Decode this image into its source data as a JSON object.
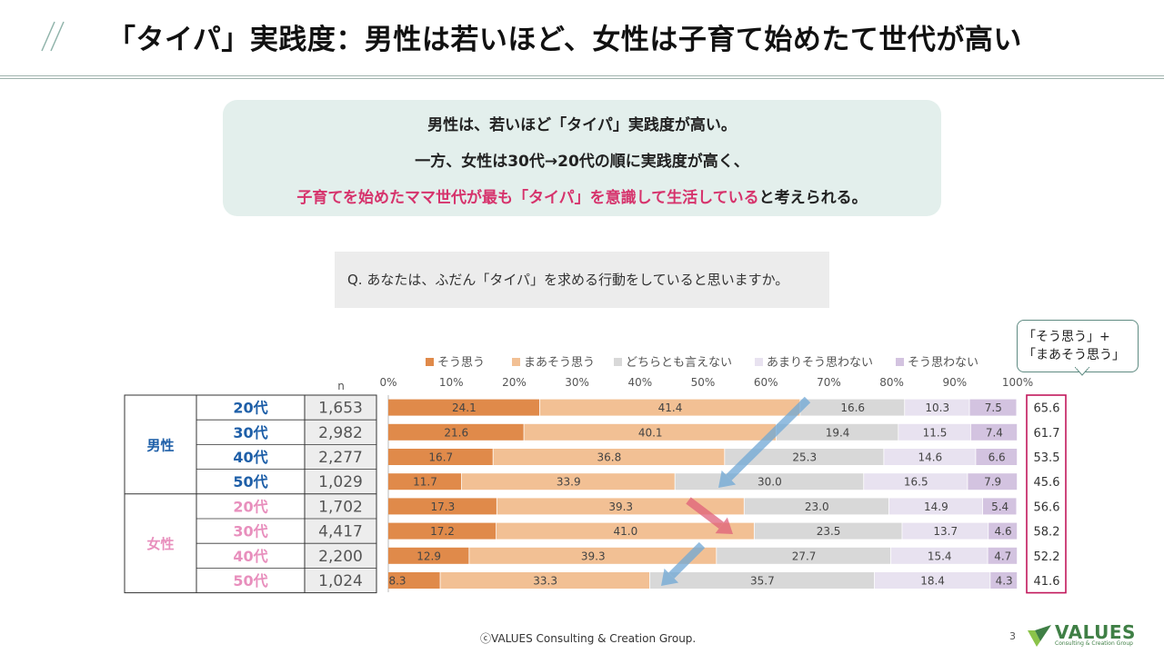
{
  "title": "「タイパ」実践度：男性は若いほど、女性は子育て始めたて世代が高い",
  "summary": {
    "line1": "男性は、若いほど「タイパ」実践度が高い。",
    "line2": "一方、女性は30代→20代の順に実践度が高く、",
    "line3_highlight": "子育てを始めたママ世代が最も「タイパ」を意識して生活している",
    "line3_rest": "と考えられる。"
  },
  "question": "Q. あなたは、ふだん「タイパ」を求める行動をしていると思いますか。",
  "callout": {
    "line1": "「そう思う」+",
    "line2": "「まあそう思う」"
  },
  "footer": "ⓒVALUES  Consulting & Creation Group.",
  "page_number": "3",
  "logo": {
    "name": "VALUES",
    "sub": "Consulting & Creation Group"
  },
  "colors": {
    "so_omou": "#e08a4a",
    "maa_so_omou": "#f2c094",
    "dochira": "#d8d8d8",
    "amari": "#e8e2f0",
    "so_omowanai": "#d3c3e0",
    "male_label": "#1e5fa8",
    "female_label": "#e88fbd",
    "highlight_box": "#c2185b",
    "arrow_blue": "#6fa8d6",
    "arrow_red": "#e0607a"
  },
  "chart_data": {
    "type": "bar",
    "orientation": "horizontal-stacked-100",
    "n_label": "n",
    "x_ticks": [
      "0%",
      "10%",
      "20%",
      "30%",
      "40%",
      "50%",
      "60%",
      "70%",
      "80%",
      "90%",
      "100%"
    ],
    "legend": [
      "そう思う",
      "まあそう思う",
      "どちらとも言えない",
      "あまりそう思わない",
      "そう思わない"
    ],
    "groups": [
      {
        "name": "男性",
        "rows": [
          {
            "age": "20代",
            "n": "1,653",
            "values": [
              24.1,
              41.4,
              16.6,
              10.3,
              7.5
            ],
            "top2": "65.6"
          },
          {
            "age": "30代",
            "n": "2,982",
            "values": [
              21.6,
              40.1,
              19.4,
              11.5,
              7.4
            ],
            "top2": "61.7"
          },
          {
            "age": "40代",
            "n": "2,277",
            "values": [
              16.7,
              36.8,
              25.3,
              14.6,
              6.6
            ],
            "top2": "53.5"
          },
          {
            "age": "50代",
            "n": "1,029",
            "values": [
              11.7,
              33.9,
              30.0,
              16.5,
              7.9
            ],
            "top2": "45.6"
          }
        ]
      },
      {
        "name": "女性",
        "rows": [
          {
            "age": "20代",
            "n": "1,702",
            "values": [
              17.3,
              39.3,
              23.0,
              14.9,
              5.4
            ],
            "top2": "56.6"
          },
          {
            "age": "30代",
            "n": "4,417",
            "values": [
              17.2,
              41.0,
              23.5,
              13.7,
              4.6
            ],
            "top2": "58.2"
          },
          {
            "age": "40代",
            "n": "2,200",
            "values": [
              12.9,
              39.3,
              27.7,
              15.4,
              4.7
            ],
            "top2": "52.2"
          },
          {
            "age": "50代",
            "n": "1,024",
            "values": [
              8.3,
              33.3,
              35.7,
              18.4,
              4.3
            ],
            "top2": "41.6"
          }
        ]
      }
    ]
  }
}
